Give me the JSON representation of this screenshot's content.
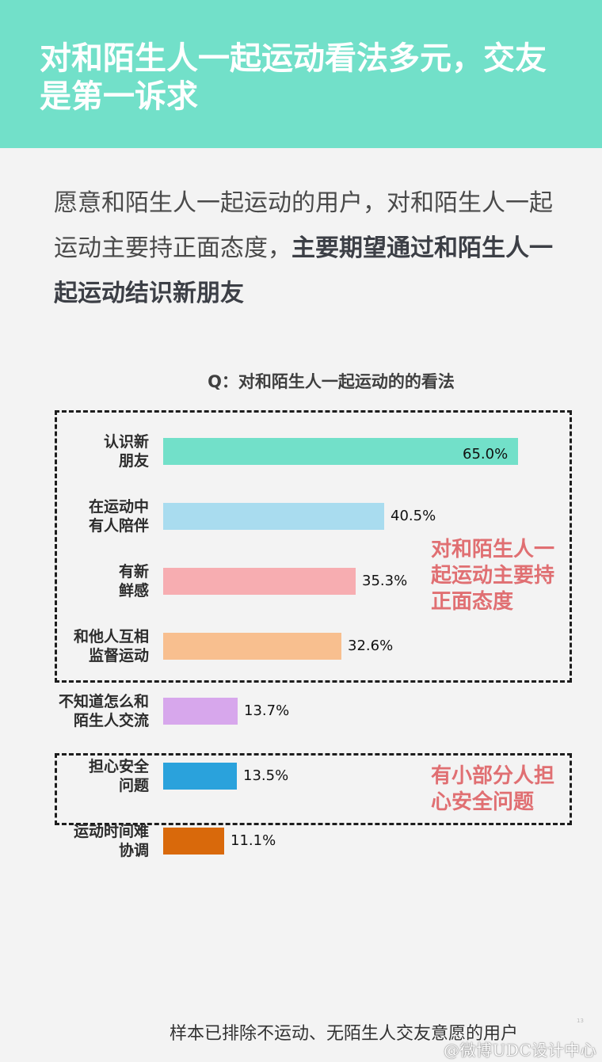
{
  "header": {
    "title": "对和陌生人一起运动看法多元，交友\n是第一诉求"
  },
  "intro": {
    "plain": "愿意和陌生人一起运动的用户，对和陌生人一起运动主要持正面态度，",
    "bold": "主要期望通过和陌生人一起运动结识新朋友"
  },
  "chart_data": {
    "type": "bar",
    "orientation": "horizontal",
    "title": "Q：对和陌生人一起运动的的看法",
    "categories": [
      "认识新\n朋友",
      "在运动中\n有人陪伴",
      "有新\n鲜感",
      "和他人互相\n监督运动",
      "不知道怎么和\n陌生人交流",
      "担心安全\n问题",
      "运动时间难\n协调"
    ],
    "values": [
      65.0,
      40.5,
      35.3,
      32.6,
      13.7,
      13.5,
      11.1
    ],
    "value_labels": [
      "65.0%",
      "40.5%",
      "35.3%",
      "32.6%",
      "13.7%",
      "13.5%",
      "11.1%"
    ],
    "colors": [
      "#72e0c9",
      "#a9dcef",
      "#f7adb1",
      "#f8bf8f",
      "#d7a7ec",
      "#2aa2dc",
      "#d9690b"
    ],
    "xlim": [
      0,
      65.0
    ],
    "grid": false,
    "legend": "none"
  },
  "callouts": {
    "positive": "对和陌生人一\n起运动主要持\n正面态度",
    "safety": "有小部分人担\n心安全问题"
  },
  "footer": {
    "note": "样本已排除不运动、无陌生人交友意愿的用户",
    "page": "13",
    "watermark": "@微博UDC设计中心"
  }
}
